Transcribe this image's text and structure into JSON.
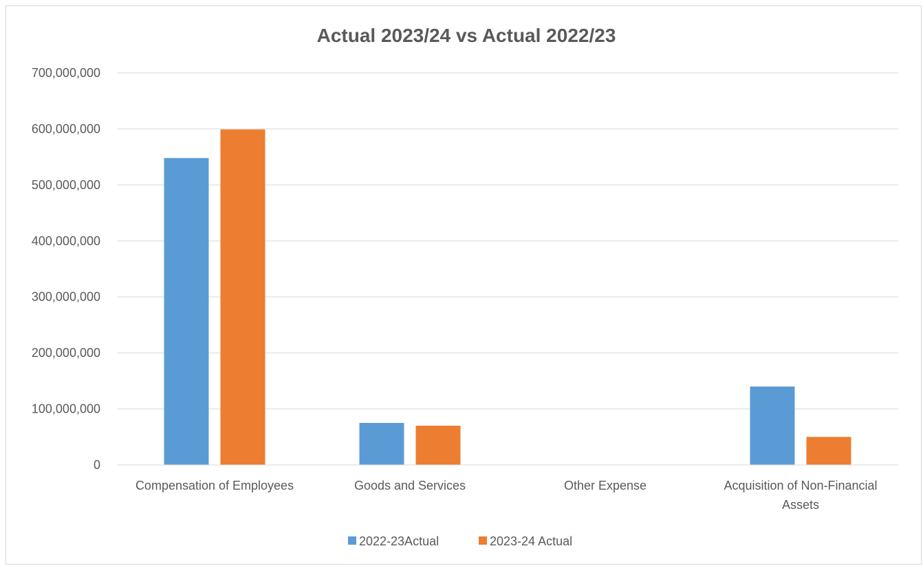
{
  "chart_data": {
    "type": "bar",
    "title": "Actual 2023/24 vs Actual 2022/23",
    "xlabel": "",
    "ylabel": "",
    "categories": [
      [
        "Compensation of Employees"
      ],
      [
        "Goods and Services"
      ],
      [
        "Other Expense"
      ],
      [
        "Acquisition of Non-Financial",
        "Assets"
      ]
    ],
    "series": [
      {
        "name": "2022-23Actual",
        "color": "#5b9bd5",
        "values": [
          548000000,
          75000000,
          0,
          140000000
        ]
      },
      {
        "name": "2023-24 Actual",
        "color": "#ed7d31",
        "values": [
          599000000,
          70000000,
          0,
          50000000
        ]
      }
    ],
    "ylim": [
      0,
      700000000
    ],
    "yticks": [
      0,
      100000000,
      200000000,
      300000000,
      400000000,
      500000000,
      600000000,
      700000000
    ],
    "ytick_labels": [
      "0",
      "100,000,000",
      "200,000,000",
      "300,000,000",
      "400,000,000",
      "500,000,000",
      "600,000,000",
      "700,000,000"
    ],
    "grid": true,
    "legend_position": "bottom",
    "gridline_color": "#d9d9d9"
  }
}
